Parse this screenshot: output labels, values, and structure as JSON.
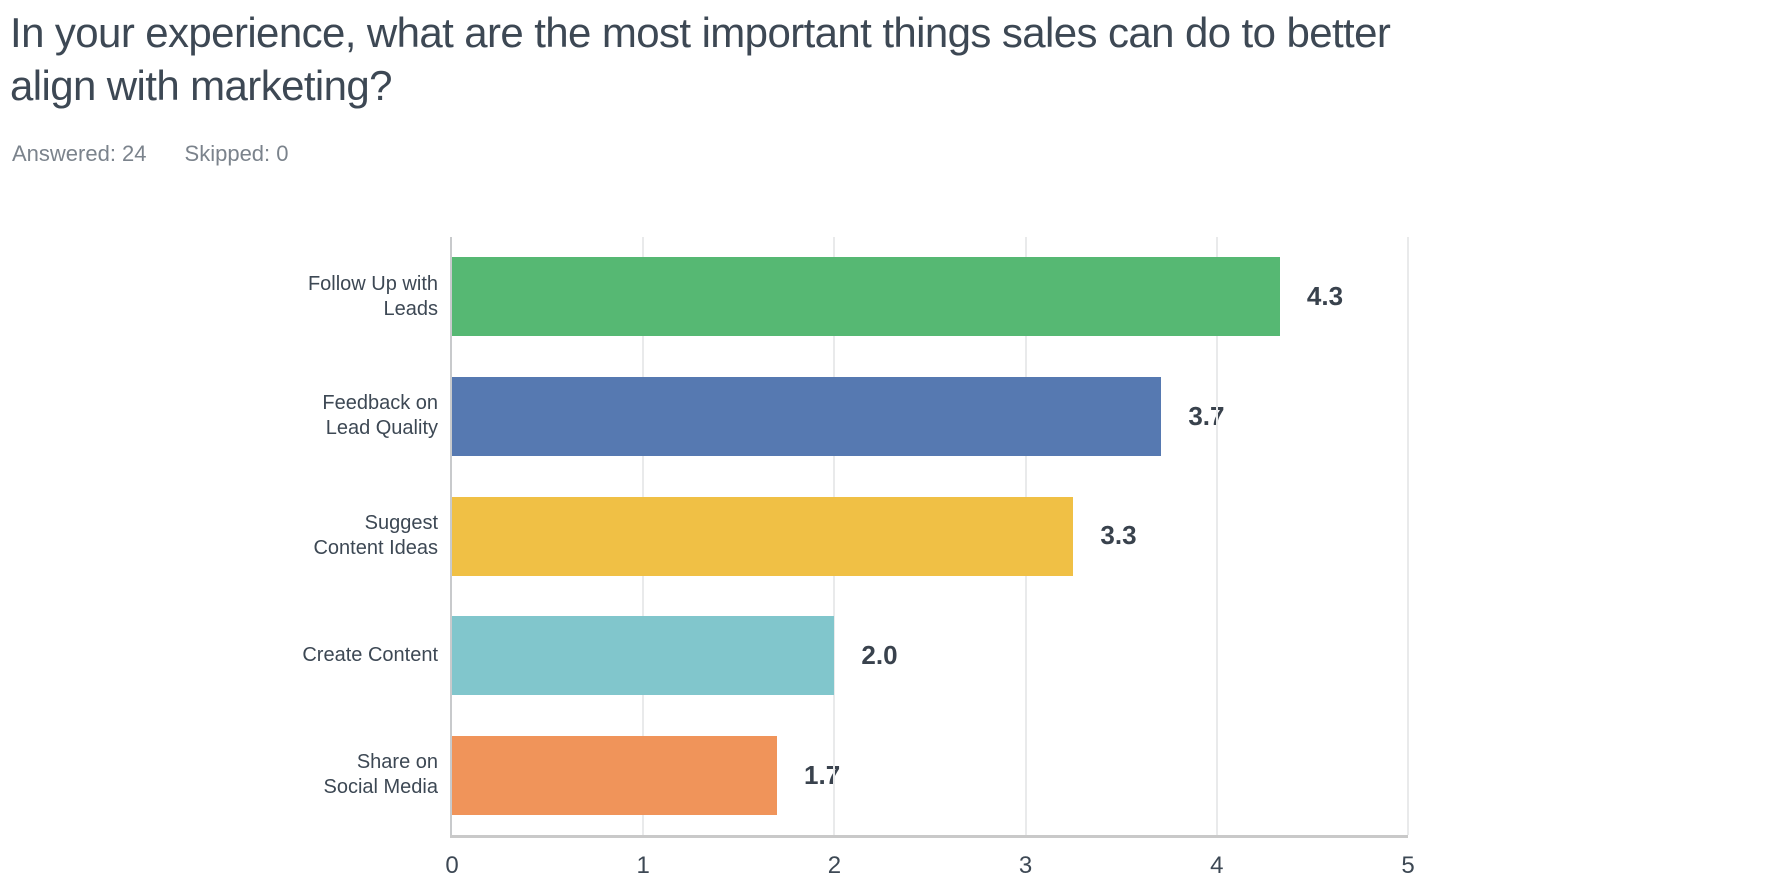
{
  "page": {
    "title": "In your experience, what are the most important things sales can do to better align with marketing?",
    "title_lines": [
      "In your experience, what are the most important things sales can do to better",
      "align with marketing?"
    ],
    "answered_label": "Answered: 24",
    "skipped_label": "Skipped: 0"
  },
  "chart_data": {
    "type": "bar",
    "orientation": "horizontal",
    "title": "In your experience, what are the most important things sales can do to better align with marketing?",
    "answered": 24,
    "skipped": 0,
    "categories": [
      "Follow Up with Leads",
      "Feedback on Lead Quality",
      "Suggest Content Ideas",
      "Create Content",
      "Share on Social Media"
    ],
    "category_lines": [
      [
        "Follow Up with",
        "Leads"
      ],
      [
        "Feedback on",
        "Lead Quality"
      ],
      [
        "Suggest",
        "Content Ideas"
      ],
      [
        "Create Content"
      ],
      [
        "Share on",
        "Social Media"
      ]
    ],
    "values": [
      4.33,
      3.71,
      3.25,
      2.0,
      1.7
    ],
    "value_labels": [
      "4.3",
      "3.7",
      "3.3",
      "2.0",
      "1.7"
    ],
    "bar_colors": [
      "#56b873",
      "#5679b1",
      "#f0c045",
      "#81c6cc",
      "#f0945a"
    ],
    "xlabel": "",
    "ylabel": "",
    "xlim": [
      0,
      5
    ],
    "x_ticks": [
      0,
      1,
      2,
      3,
      4,
      5
    ],
    "x_tick_labels": [
      "0",
      "1",
      "2",
      "3",
      "4",
      "5"
    ],
    "grid": "vertical",
    "legend": "none"
  },
  "colors": {
    "background": "#ffffff",
    "title_text": "#3d4854",
    "meta_text": "#7b838c",
    "category_text": "#3d4854",
    "value_text": "#39424d",
    "tick_text": "#3d4854",
    "gridline": "#e9eaeb",
    "axis_line": "#c9c9c9"
  }
}
